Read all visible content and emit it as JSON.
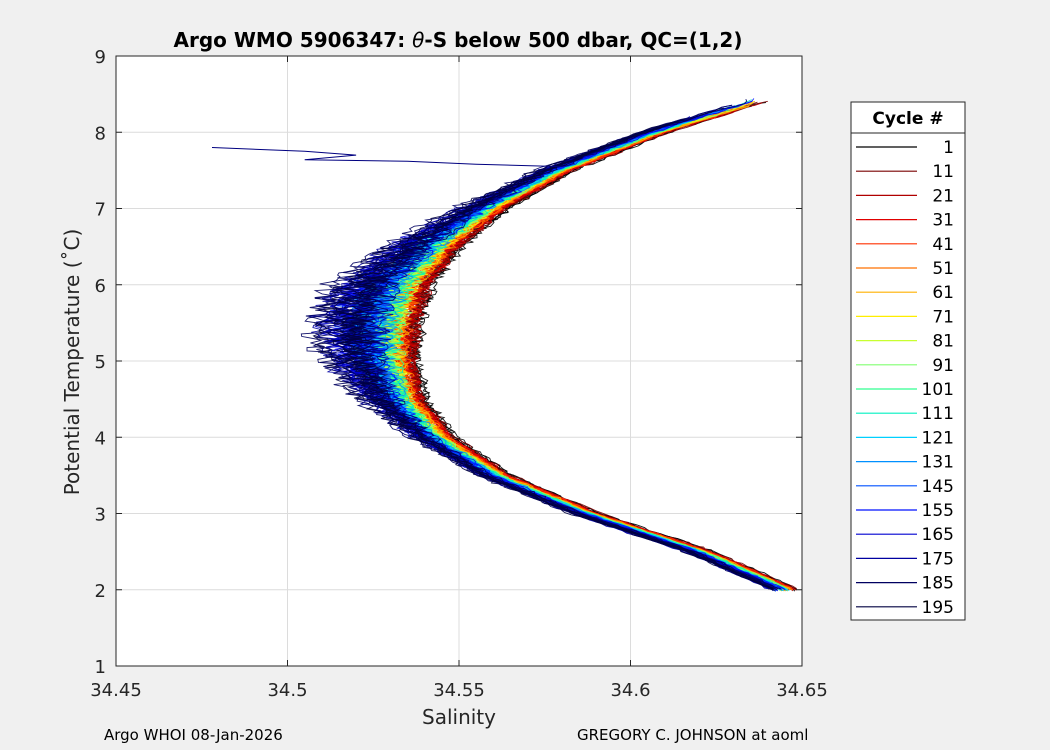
{
  "chart_data": {
    "type": "line",
    "title": "Argo WMO 5906347: θ-S below 500 dbar,  QC=(1,2)",
    "title_parts": {
      "prefix": "Argo WMO 5906347: ",
      "theta": "θ",
      "suffix": "-S below 500 dbar,  QC=(1,2)"
    },
    "xlabel": "Salinity",
    "ylabel": "Potential Temperature (˚C)",
    "xlim": [
      34.45,
      34.65
    ],
    "ylim": [
      1,
      9
    ],
    "x_ticks": [
      34.45,
      34.5,
      34.55,
      34.6,
      34.65
    ],
    "x_tick_labels": [
      "34.45",
      "34.5",
      "34.55",
      "34.6",
      "34.65"
    ],
    "y_ticks": [
      1,
      2,
      3,
      4,
      5,
      6,
      7,
      8,
      9
    ],
    "y_tick_labels": [
      "1",
      "2",
      "3",
      "4",
      "5",
      "6",
      "7",
      "8",
      "9"
    ],
    "grid": true,
    "legend": {
      "title": "Cycle #",
      "placement": "right-outside",
      "entries": [
        {
          "label": "1",
          "color": "#000000"
        },
        {
          "label": "11",
          "color": "#7a0000"
        },
        {
          "label": "21",
          "color": "#b00000"
        },
        {
          "label": "31",
          "color": "#e00000"
        },
        {
          "label": "41",
          "color": "#ff3000"
        },
        {
          "label": "51",
          "color": "#ff7000"
        },
        {
          "label": "61",
          "color": "#ffb000"
        },
        {
          "label": "71",
          "color": "#ffee00"
        },
        {
          "label": "81",
          "color": "#c8ff30"
        },
        {
          "label": "91",
          "color": "#80ff70"
        },
        {
          "label": "101",
          "color": "#30ff90"
        },
        {
          "label": "111",
          "color": "#00f0c0"
        },
        {
          "label": "121",
          "color": "#00d0ff"
        },
        {
          "label": "131",
          "color": "#0090ff"
        },
        {
          "label": "145",
          "color": "#0050ff"
        },
        {
          "label": "155",
          "color": "#0010ff"
        },
        {
          "label": "165",
          "color": "#0000d0"
        },
        {
          "label": "175",
          "color": "#0000a0"
        },
        {
          "label": "185",
          "color": "#000060"
        },
        {
          "label": "195",
          "color": "#000040"
        }
      ]
    },
    "series_template": {
      "description": "theta-S curve shape shared by all cycles, offset by cycle",
      "points": [
        {
          "theta": 2.0,
          "s": 34.646
        },
        {
          "theta": 2.5,
          "s": 34.621
        },
        {
          "theta": 3.0,
          "s": 34.588
        },
        {
          "theta": 3.5,
          "s": 34.562
        },
        {
          "theta": 4.0,
          "s": 34.545
        },
        {
          "theta": 4.5,
          "s": 34.535
        },
        {
          "theta": 5.0,
          "s": 34.531
        },
        {
          "theta": 5.5,
          "s": 34.531
        },
        {
          "theta": 6.0,
          "s": 34.535
        },
        {
          "theta": 6.5,
          "s": 34.545
        },
        {
          "theta": 7.0,
          "s": 34.56
        },
        {
          "theta": 7.5,
          "s": 34.58
        },
        {
          "theta": 8.0,
          "s": 34.608
        },
        {
          "theta": 8.4,
          "s": 34.637
        }
      ]
    },
    "outlier_series": {
      "color": "#000080",
      "points": [
        {
          "s": 34.478,
          "theta": 7.8
        },
        {
          "s": 34.505,
          "theta": 7.75
        },
        {
          "s": 34.52,
          "theta": 7.7
        },
        {
          "s": 34.505,
          "theta": 7.64
        },
        {
          "s": 34.535,
          "theta": 7.62
        },
        {
          "s": 34.555,
          "theta": 7.58
        },
        {
          "s": 34.58,
          "theta": 7.55
        }
      ]
    }
  },
  "footer": {
    "left": "Argo WHOI 08-Jan-2026",
    "right": "GREGORY C. JOHNSON at aoml"
  }
}
